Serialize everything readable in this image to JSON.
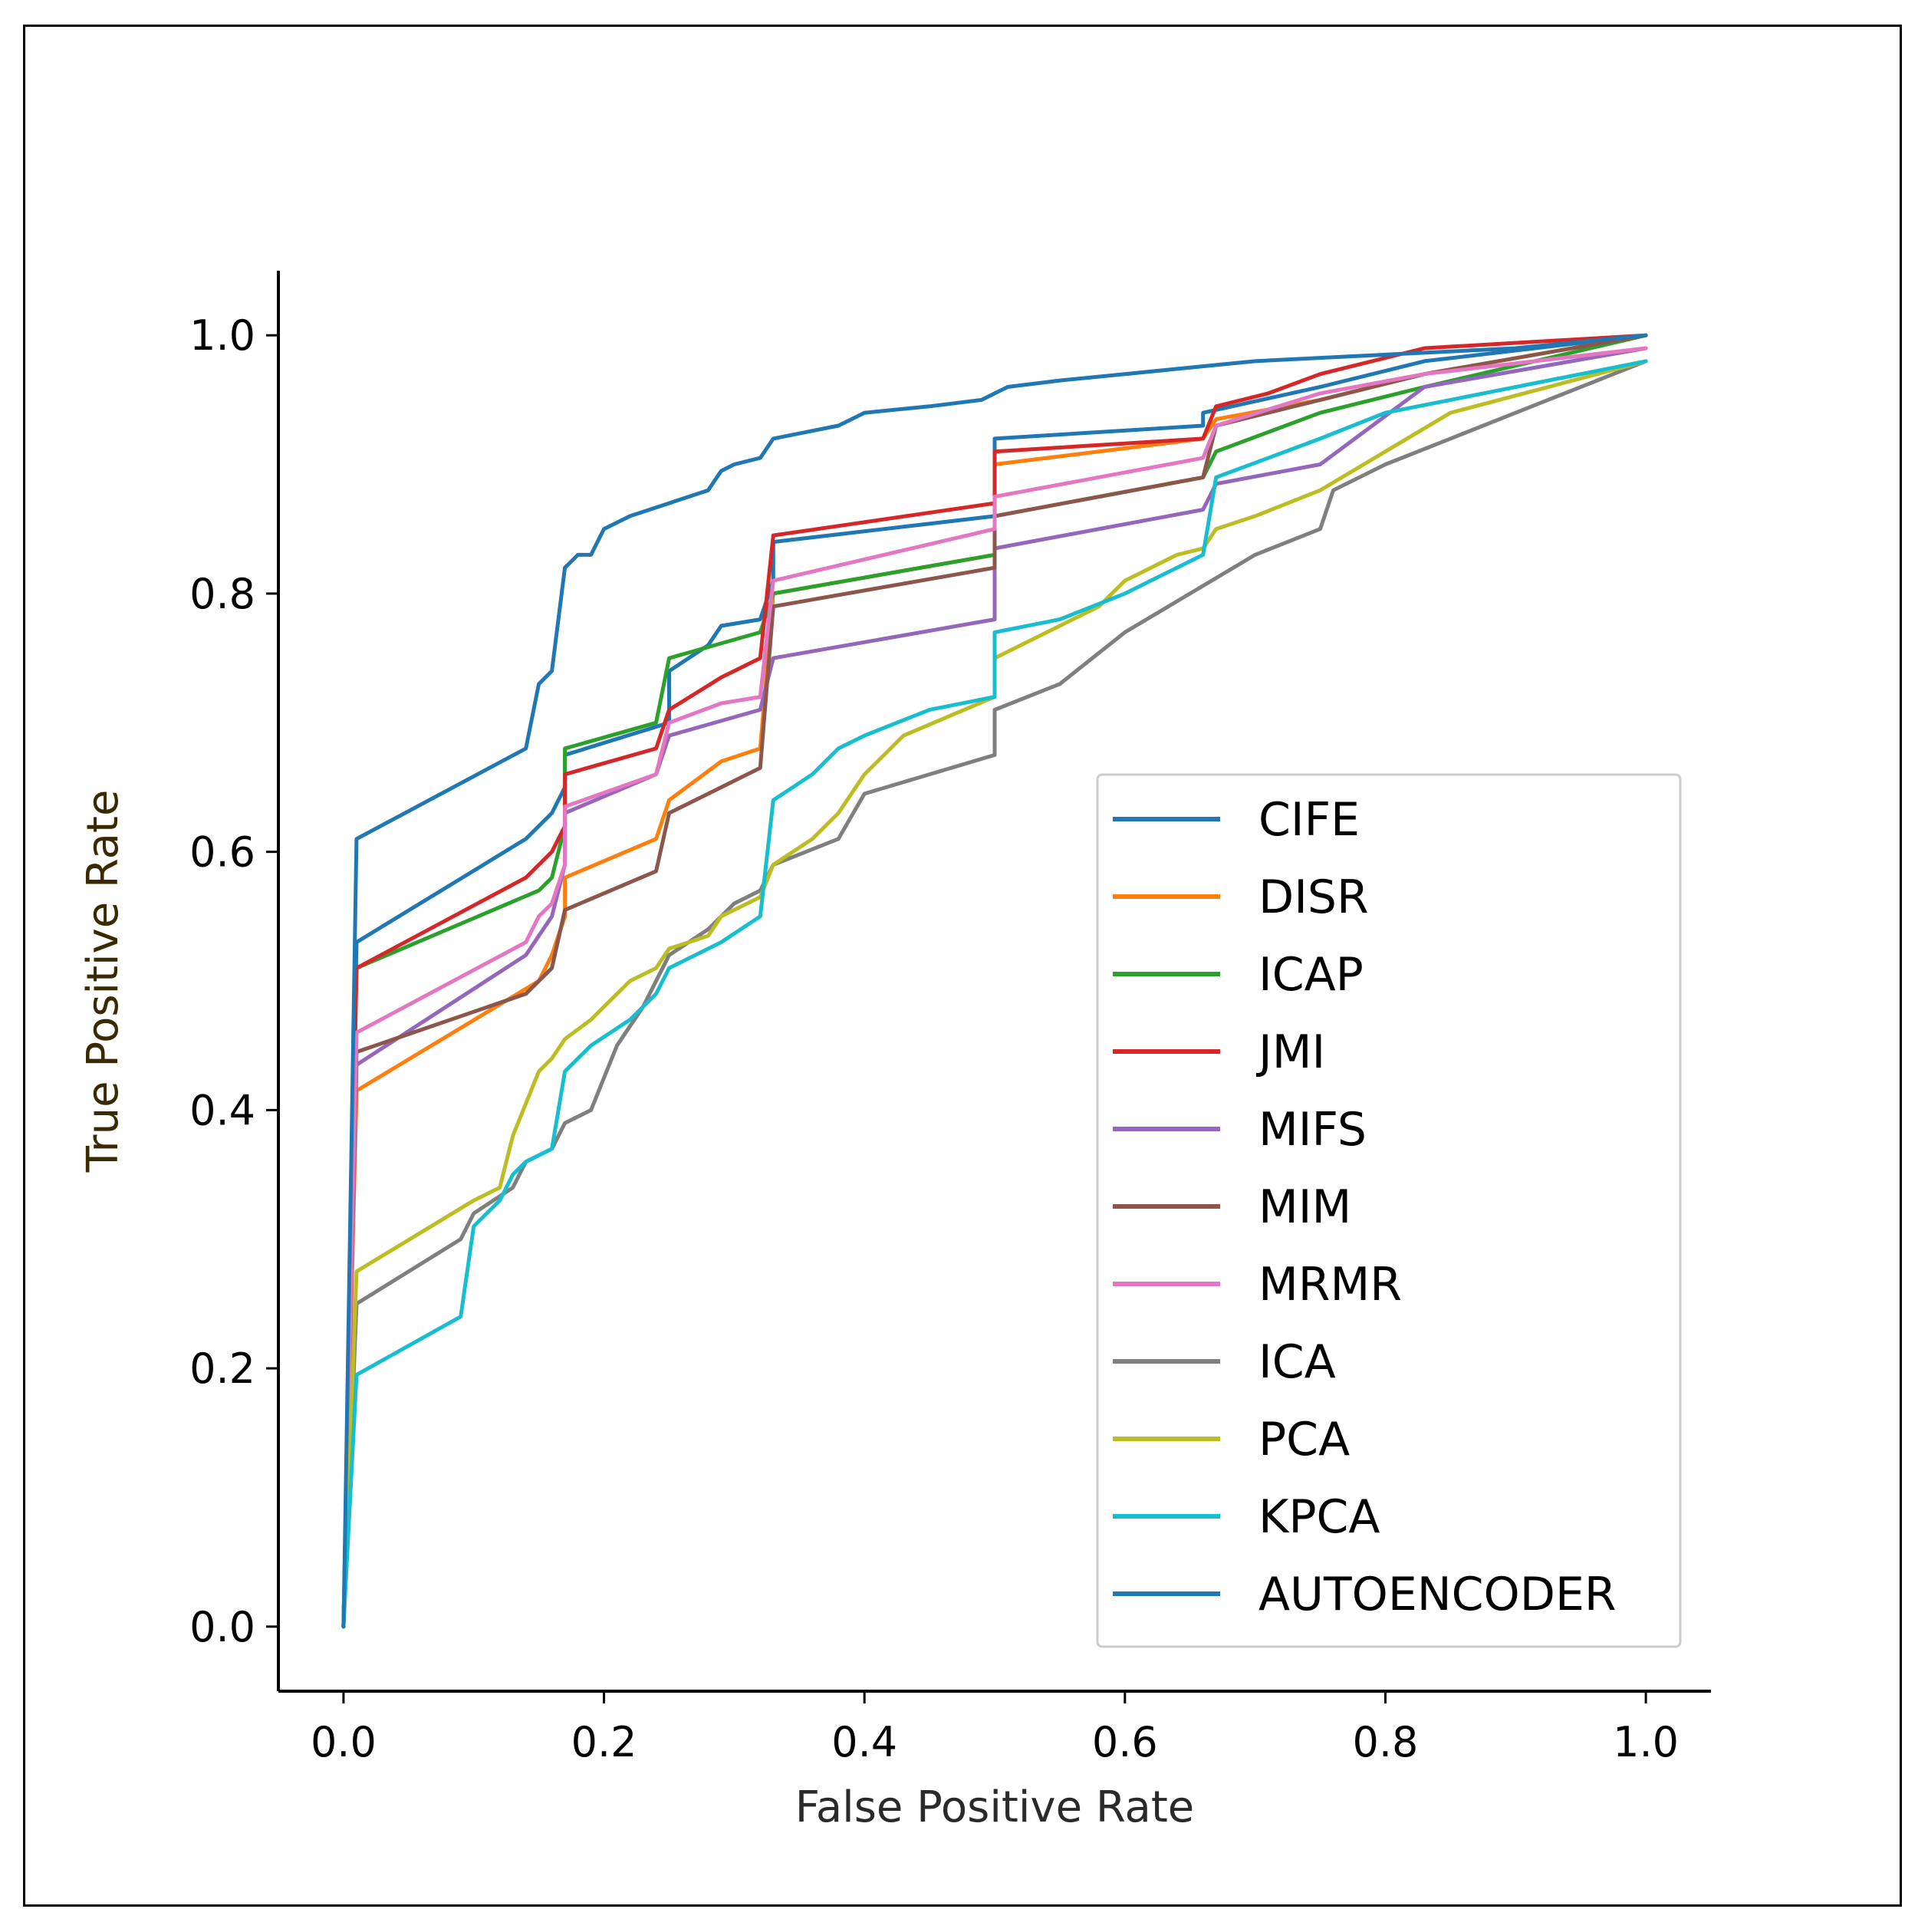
{
  "chart_data": {
    "type": "line",
    "title": "",
    "xlabel": "False Positive Rate",
    "ylabel": "True Positive Rate",
    "xlim": [
      -0.05,
      1.05
    ],
    "ylim": [
      -0.05,
      1.05
    ],
    "xticks": [
      0.0,
      0.2,
      0.4,
      0.6,
      0.8,
      1.0
    ],
    "yticks": [
      0.0,
      0.2,
      0.4,
      0.6,
      0.8,
      1.0
    ],
    "xtick_labels": [
      "0.0",
      "0.2",
      "0.4",
      "0.6",
      "0.8",
      "1.0"
    ],
    "ytick_labels": [
      "0.0",
      "0.2",
      "0.4",
      "0.6",
      "0.8",
      "1.0"
    ],
    "grid": false,
    "legend_position": "lower-right",
    "series": [
      {
        "name": "CIFE",
        "color": "#1f77b4",
        "x": [
          0,
          0.01,
          0.14,
          0.15,
          0.16,
          0.17,
          0.17,
          0.25,
          0.25,
          0.28,
          0.29,
          0.32,
          0.33,
          0.33,
          0.5,
          0.5,
          0.66,
          0.66,
          0.75,
          0.83,
          1.0
        ],
        "y": [
          0,
          0.53,
          0.61,
          0.62,
          0.63,
          0.65,
          0.675,
          0.7,
          0.74,
          0.76,
          0.775,
          0.78,
          0.81,
          0.84,
          0.86,
          0.92,
          0.93,
          0.94,
          0.96,
          0.98,
          1.0
        ]
      },
      {
        "name": "DISR",
        "color": "#ff7f0e",
        "x": [
          0,
          0.01,
          0.15,
          0.16,
          0.17,
          0.17,
          0.24,
          0.25,
          0.29,
          0.32,
          0.33,
          0.5,
          0.5,
          0.66,
          0.67,
          0.75,
          0.83,
          1.0
        ],
        "y": [
          0,
          0.415,
          0.5,
          0.52,
          0.55,
          0.58,
          0.61,
          0.64,
          0.67,
          0.68,
          0.8,
          0.83,
          0.9,
          0.92,
          0.935,
          0.95,
          0.97,
          1.0
        ]
      },
      {
        "name": "ICAP",
        "color": "#2ca02c",
        "x": [
          0,
          0.01,
          0.15,
          0.16,
          0.17,
          0.17,
          0.24,
          0.25,
          0.32,
          0.33,
          0.5,
          0.5,
          0.66,
          0.67,
          0.75,
          0.83,
          1.0
        ],
        "y": [
          0,
          0.51,
          0.57,
          0.58,
          0.62,
          0.68,
          0.7,
          0.75,
          0.77,
          0.8,
          0.83,
          0.86,
          0.89,
          0.91,
          0.94,
          0.96,
          1.0
        ]
      },
      {
        "name": "JMI",
        "color": "#d62728",
        "x": [
          0,
          0.01,
          0.14,
          0.15,
          0.16,
          0.17,
          0.17,
          0.24,
          0.25,
          0.29,
          0.32,
          0.33,
          0.5,
          0.5,
          0.66,
          0.67,
          0.71,
          0.75,
          0.83,
          1.0
        ],
        "y": [
          0,
          0.51,
          0.58,
          0.59,
          0.6,
          0.62,
          0.66,
          0.68,
          0.71,
          0.735,
          0.75,
          0.845,
          0.87,
          0.91,
          0.92,
          0.945,
          0.955,
          0.97,
          0.99,
          1.0
        ]
      },
      {
        "name": "MIFS",
        "color": "#9467bd",
        "x": [
          0,
          0.01,
          0.14,
          0.16,
          0.17,
          0.17,
          0.24,
          0.25,
          0.32,
          0.33,
          0.5,
          0.5,
          0.66,
          0.67,
          0.75,
          0.83,
          1.0
        ],
        "y": [
          0,
          0.435,
          0.52,
          0.55,
          0.59,
          0.63,
          0.66,
          0.69,
          0.71,
          0.75,
          0.78,
          0.835,
          0.865,
          0.885,
          0.9,
          0.96,
          0.99
        ]
      },
      {
        "name": "MIM",
        "color": "#8c564b",
        "x": [
          0,
          0.01,
          0.14,
          0.16,
          0.17,
          0.24,
          0.25,
          0.29,
          0.32,
          0.33,
          0.5,
          0.5,
          0.66,
          0.67,
          0.75,
          0.83,
          1.0
        ],
        "y": [
          0,
          0.445,
          0.49,
          0.51,
          0.555,
          0.585,
          0.63,
          0.65,
          0.665,
          0.79,
          0.82,
          0.86,
          0.89,
          0.93,
          0.95,
          0.97,
          1.0
        ]
      },
      {
        "name": "MRMR",
        "color": "#e377c2",
        "x": [
          0,
          0.01,
          0.14,
          0.15,
          0.16,
          0.17,
          0.17,
          0.24,
          0.25,
          0.29,
          0.32,
          0.33,
          0.5,
          0.5,
          0.66,
          0.67,
          0.75,
          0.83,
          1.0
        ],
        "y": [
          0,
          0.46,
          0.53,
          0.55,
          0.56,
          0.59,
          0.635,
          0.66,
          0.7,
          0.715,
          0.72,
          0.81,
          0.85,
          0.875,
          0.905,
          0.93,
          0.955,
          0.97,
          0.99
        ]
      },
      {
        "name": "ICA",
        "color": "#7f7f7f",
        "x": [
          0,
          0.01,
          0.09,
          0.1,
          0.13,
          0.14,
          0.16,
          0.17,
          0.19,
          0.21,
          0.23,
          0.25,
          0.28,
          0.3,
          0.32,
          0.33,
          0.38,
          0.4,
          0.45,
          0.5,
          0.5,
          0.55,
          0.6,
          0.65,
          0.7,
          0.75,
          0.76,
          0.8,
          0.85,
          0.9,
          1.0
        ],
        "y": [
          0,
          0.25,
          0.3,
          0.32,
          0.34,
          0.36,
          0.37,
          0.39,
          0.4,
          0.45,
          0.48,
          0.52,
          0.54,
          0.56,
          0.57,
          0.59,
          0.61,
          0.645,
          0.66,
          0.675,
          0.71,
          0.73,
          0.77,
          0.8,
          0.83,
          0.85,
          0.88,
          0.9,
          0.92,
          0.94,
          0.98
        ]
      },
      {
        "name": "PCA",
        "color": "#bcbd22",
        "x": [
          0,
          0.01,
          0.1,
          0.12,
          0.13,
          0.15,
          0.16,
          0.17,
          0.19,
          0.2,
          0.22,
          0.24,
          0.25,
          0.28,
          0.29,
          0.32,
          0.33,
          0.36,
          0.38,
          0.4,
          0.41,
          0.43,
          0.5,
          0.5,
          0.55,
          0.58,
          0.6,
          0.62,
          0.64,
          0.66,
          0.67,
          0.7,
          0.75,
          0.8,
          0.85,
          1.0
        ],
        "y": [
          0,
          0.275,
          0.33,
          0.34,
          0.38,
          0.43,
          0.44,
          0.455,
          0.47,
          0.48,
          0.5,
          0.51,
          0.525,
          0.535,
          0.55,
          0.565,
          0.59,
          0.61,
          0.63,
          0.66,
          0.67,
          0.69,
          0.72,
          0.75,
          0.775,
          0.79,
          0.81,
          0.82,
          0.83,
          0.835,
          0.85,
          0.86,
          0.88,
          0.91,
          0.94,
          0.98
        ]
      },
      {
        "name": "KPCA",
        "color": "#17becf",
        "x": [
          0,
          0.01,
          0.09,
          0.1,
          0.12,
          0.13,
          0.14,
          0.16,
          0.17,
          0.19,
          0.22,
          0.24,
          0.25,
          0.29,
          0.32,
          0.33,
          0.36,
          0.38,
          0.4,
          0.45,
          0.5,
          0.5,
          0.55,
          0.6,
          0.64,
          0.66,
          0.67,
          0.75,
          0.8,
          0.85,
          1.0
        ],
        "y": [
          0,
          0.195,
          0.24,
          0.31,
          0.33,
          0.35,
          0.36,
          0.37,
          0.43,
          0.45,
          0.47,
          0.49,
          0.51,
          0.53,
          0.55,
          0.64,
          0.66,
          0.68,
          0.69,
          0.71,
          0.72,
          0.77,
          0.78,
          0.8,
          0.82,
          0.83,
          0.89,
          0.92,
          0.94,
          0.95,
          0.98
        ]
      },
      {
        "name": "AUTOENCODER",
        "color": "#1f77b4",
        "x": [
          0,
          0.01,
          0.14,
          0.15,
          0.16,
          0.17,
          0.18,
          0.19,
          0.2,
          0.22,
          0.25,
          0.28,
          0.29,
          0.3,
          0.32,
          0.33,
          0.38,
          0.4,
          0.45,
          0.49,
          0.5,
          0.51,
          0.55,
          0.6,
          0.65,
          0.7,
          0.8,
          0.9,
          1.0
        ],
        "y": [
          0,
          0.61,
          0.68,
          0.73,
          0.74,
          0.82,
          0.83,
          0.83,
          0.85,
          0.86,
          0.87,
          0.88,
          0.895,
          0.9,
          0.905,
          0.92,
          0.93,
          0.94,
          0.945,
          0.95,
          0.955,
          0.96,
          0.965,
          0.97,
          0.975,
          0.98,
          0.985,
          0.99,
          1.0
        ]
      }
    ]
  }
}
